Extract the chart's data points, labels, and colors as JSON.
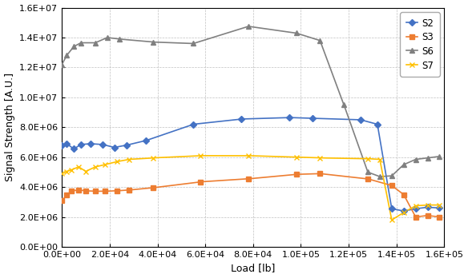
{
  "S2": {
    "x": [
      0,
      2000,
      5000,
      8000,
      12000,
      17000,
      22000,
      27000,
      35000,
      55000,
      75000,
      95000,
      105000,
      125000,
      132000,
      138000,
      143000,
      148000,
      153000,
      158000
    ],
    "y": [
      6800000.0,
      6900000.0,
      6550000.0,
      6850000.0,
      6900000.0,
      6850000.0,
      6650000.0,
      6800000.0,
      7100000.0,
      8200000.0,
      8550000.0,
      8650000.0,
      8600000.0,
      8500000.0,
      8200000.0,
      2550000.0,
      2400000.0,
      2550000.0,
      2650000.0,
      2600000.0
    ],
    "color": "#4472c4",
    "marker": "D",
    "markersize": 4,
    "label": "S2"
  },
  "S3": {
    "x": [
      0,
      2000,
      4000,
      7000,
      10000,
      14000,
      18000,
      23000,
      28000,
      38000,
      58000,
      78000,
      98000,
      108000,
      128000,
      138000,
      143000,
      148000,
      153000,
      158000
    ],
    "y": [
      3100000.0,
      3450000.0,
      3750000.0,
      3800000.0,
      3750000.0,
      3720000.0,
      3720000.0,
      3750000.0,
      3800000.0,
      3950000.0,
      4350000.0,
      4550000.0,
      4850000.0,
      4900000.0,
      4550000.0,
      4100000.0,
      3500000.0,
      2000000.0,
      2100000.0,
      2000000.0
    ],
    "color": "#ed7d31",
    "marker": "s",
    "markersize": 4,
    "label": "S3"
  },
  "S6": {
    "x": [
      0,
      2000,
      5000,
      8000,
      14000,
      19000,
      24000,
      38000,
      55000,
      78000,
      98000,
      108000,
      118000,
      128000,
      133000,
      138000,
      143000,
      148000,
      153000,
      158000
    ],
    "y": [
      12200000.0,
      12800000.0,
      13400000.0,
      13650000.0,
      13650000.0,
      14000000.0,
      13900000.0,
      13700000.0,
      13600000.0,
      14750000.0,
      14300000.0,
      13800000.0,
      9500000.0,
      5000000.0,
      4700000.0,
      4750000.0,
      5500000.0,
      5850000.0,
      5950000.0,
      6050000.0
    ],
    "color": "#808080",
    "marker": "^",
    "markersize": 4,
    "label": "S6"
  },
  "S7": {
    "x": [
      0,
      2000,
      4000,
      7000,
      10000,
      14000,
      18000,
      23000,
      28000,
      38000,
      58000,
      78000,
      98000,
      108000,
      128000,
      133000,
      138000,
      143000,
      148000,
      153000,
      158000
    ],
    "y": [
      4900000.0,
      5050000.0,
      5150000.0,
      5350000.0,
      5050000.0,
      5350000.0,
      5500000.0,
      5700000.0,
      5850000.0,
      5950000.0,
      6100000.0,
      6100000.0,
      6000000.0,
      5950000.0,
      5900000.0,
      5850000.0,
      1800000.0,
      2300000.0,
      2750000.0,
      2800000.0,
      2800000.0
    ],
    "color": "#ffc000",
    "marker": "x",
    "markersize": 5,
    "label": "S7"
  },
  "xlabel": "Load [lb]",
  "ylabel": "Signal Strength [A.U.]",
  "xlim": [
    0,
    160000.0
  ],
  "ylim": [
    0,
    16000000.0
  ],
  "xticks": [
    0,
    20000,
    40000,
    60000,
    80000,
    100000,
    120000,
    140000,
    160000
  ],
  "yticks": [
    0,
    2000000,
    4000000,
    6000000,
    8000000,
    10000000,
    12000000,
    14000000,
    16000000
  ],
  "figsize": [
    5.84,
    3.48
  ],
  "dpi": 100
}
